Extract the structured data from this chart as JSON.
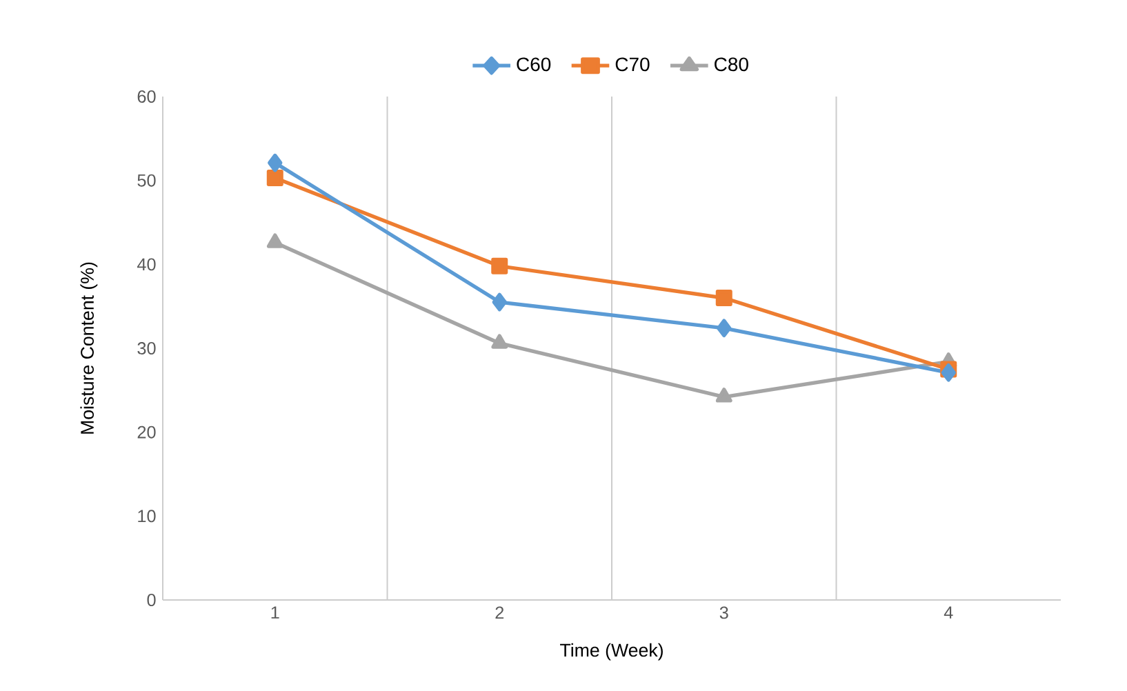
{
  "chart_data": {
    "type": "line",
    "xlabel": "Time (Week)",
    "ylabel": "Moisture Content (%)",
    "categories": [
      "1",
      "2",
      "3",
      "4"
    ],
    "series": [
      {
        "name": "C60",
        "color": "#5b9bd5",
        "marker": "diamond",
        "values": [
          52.1,
          35.5,
          32.4,
          27.1
        ]
      },
      {
        "name": "C70",
        "color": "#ed7d31",
        "marker": "square",
        "values": [
          50.3,
          39.8,
          36.0,
          27.5
        ]
      },
      {
        "name": "C80",
        "color": "#a5a5a5",
        "marker": "triangle",
        "values": [
          42.6,
          30.6,
          24.2,
          28.4
        ]
      }
    ],
    "ylim": [
      0,
      60
    ],
    "yticks": [
      0,
      10,
      20,
      30,
      40,
      50,
      60
    ],
    "grid": "x",
    "legend": "top",
    "line_style": "solid"
  }
}
